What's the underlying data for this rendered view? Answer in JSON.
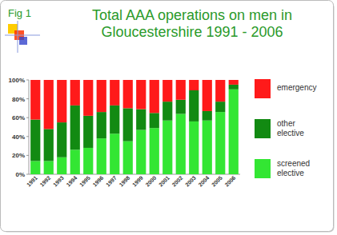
{
  "chart_data": {
    "type": "bar",
    "stacked": true,
    "grid": false,
    "legend": "right",
    "title": "Total AAA operations on men in\nGloucestershire 1991 - 2006",
    "annotations": [
      "Fig 1"
    ],
    "categories": [
      "1991",
      "1992",
      "1993",
      "1994",
      "1995",
      "1996",
      "1997",
      "1998",
      "1999",
      "2000",
      "2001",
      "2002",
      "2003",
      "2004",
      "2005",
      "2006"
    ],
    "series": [
      {
        "name": "screened elective",
        "color": "#33e633",
        "values": [
          14,
          14,
          18,
          26,
          28,
          38,
          43,
          35,
          47,
          49,
          57,
          64,
          56,
          57,
          66,
          90
        ]
      },
      {
        "name": "other elective",
        "color": "#128a12",
        "values": [
          44,
          34,
          37,
          47,
          34,
          28,
          30,
          35,
          22,
          16,
          20,
          15,
          33,
          10,
          11,
          5
        ]
      },
      {
        "name": "emergency",
        "color": "#ff1a1a",
        "values": [
          42,
          52,
          45,
          27,
          38,
          34,
          27,
          30,
          31,
          35,
          23,
          21,
          11,
          33,
          23,
          5
        ]
      }
    ],
    "ylim": [
      0,
      100
    ],
    "yticks": [
      {
        "value": 0,
        "label": "0%"
      },
      {
        "value": 20,
        "label": "20%"
      },
      {
        "value": 40,
        "label": "40%"
      },
      {
        "value": 60,
        "label": "60%"
      },
      {
        "value": 80,
        "label": "80%"
      },
      {
        "value": 100,
        "label": "100%"
      }
    ]
  }
}
